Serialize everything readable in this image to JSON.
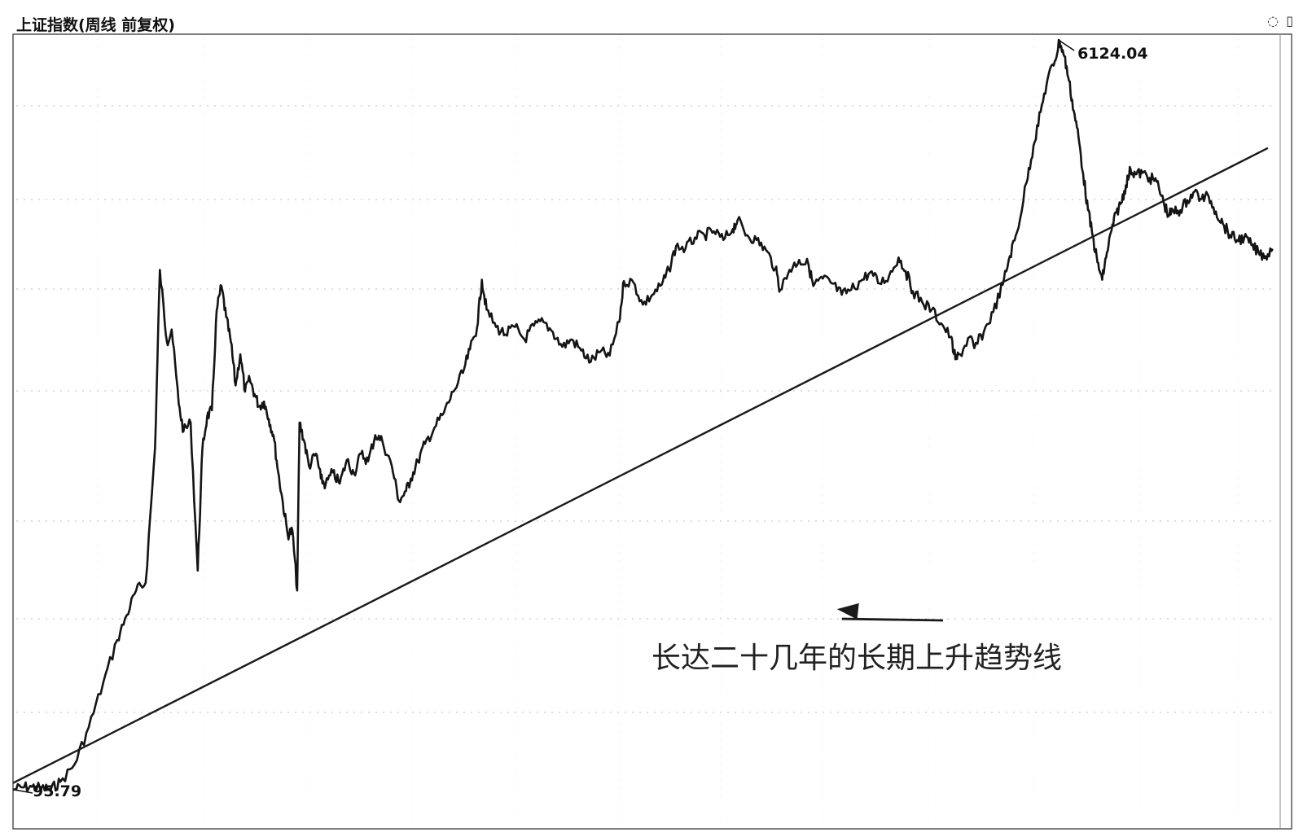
{
  "window": {
    "title": "上证指数(周线 前复权)",
    "controls": {
      "restore_icon": "◌",
      "maximize_icon": "▯",
      "close_icon": "×"
    }
  },
  "colors": {
    "price_line": "#141414",
    "trend_line": "#1a1a1a",
    "grid": "#bdbdbd",
    "border": "#555555"
  },
  "chart_data": {
    "type": "line",
    "title": "上证指数(周线 前复权)",
    "xlabel": "",
    "ylabel": "",
    "grid": true,
    "ylim": [
      95.79,
      6124.04
    ],
    "series": [
      {
        "values": [
          [
            0,
            96
          ],
          [
            4,
            115
          ],
          [
            8,
            120
          ],
          [
            12,
            110
          ],
          [
            16,
            100
          ],
          [
            20,
            160
          ],
          [
            26,
            300
          ],
          [
            32,
            600
          ],
          [
            38,
            950
          ],
          [
            44,
            1300
          ],
          [
            48,
            1500
          ],
          [
            52,
            1700
          ],
          [
            56,
            1760
          ],
          [
            60,
            2850
          ],
          [
            62,
            4280
          ],
          [
            65,
            3700
          ],
          [
            67,
            3800
          ],
          [
            70,
            3200
          ],
          [
            72,
            2980
          ],
          [
            75,
            3050
          ],
          [
            78,
            1860
          ],
          [
            80,
            2850
          ],
          [
            82,
            3100
          ],
          [
            84,
            3150
          ],
          [
            86,
            3950
          ],
          [
            88,
            4150
          ],
          [
            90,
            3900
          ],
          [
            92,
            3700
          ],
          [
            94,
            3350
          ],
          [
            96,
            3600
          ],
          [
            98,
            3300
          ],
          [
            100,
            3400
          ],
          [
            102,
            3280
          ],
          [
            104,
            3180
          ],
          [
            106,
            3220
          ],
          [
            108,
            3080
          ],
          [
            110,
            2950
          ],
          [
            112,
            2650
          ],
          [
            114,
            2400
          ],
          [
            116,
            2150
          ],
          [
            118,
            2180
          ],
          [
            120,
            1700
          ],
          [
            121,
            3050
          ],
          [
            123,
            2900
          ],
          [
            125,
            2700
          ],
          [
            128,
            2800
          ],
          [
            130,
            2600
          ],
          [
            132,
            2550
          ],
          [
            135,
            2650
          ],
          [
            138,
            2560
          ],
          [
            141,
            2750
          ],
          [
            144,
            2640
          ],
          [
            147,
            2800
          ],
          [
            150,
            2740
          ],
          [
            153,
            2950
          ],
          [
            156,
            2900
          ],
          [
            160,
            2700
          ],
          [
            163,
            2420
          ],
          [
            166,
            2500
          ],
          [
            168,
            2600
          ],
          [
            171,
            2740
          ],
          [
            174,
            2880
          ],
          [
            178,
            3010
          ],
          [
            182,
            3130
          ],
          [
            186,
            3300
          ],
          [
            190,
            3450
          ],
          [
            193,
            3640
          ],
          [
            196,
            3820
          ],
          [
            198,
            4200
          ],
          [
            200,
            3960
          ],
          [
            204,
            3820
          ],
          [
            208,
            3760
          ],
          [
            212,
            3820
          ],
          [
            216,
            3720
          ],
          [
            220,
            3830
          ],
          [
            224,
            3860
          ],
          [
            228,
            3780
          ],
          [
            232,
            3660
          ],
          [
            236,
            3720
          ],
          [
            240,
            3630
          ],
          [
            244,
            3540
          ],
          [
            248,
            3620
          ],
          [
            252,
            3590
          ],
          [
            256,
            3860
          ],
          [
            258,
            4190
          ],
          [
            262,
            4180
          ],
          [
            266,
            4000
          ],
          [
            270,
            4080
          ],
          [
            274,
            4160
          ],
          [
            277,
            4280
          ],
          [
            280,
            4470
          ],
          [
            284,
            4450
          ],
          [
            288,
            4540
          ],
          [
            292,
            4560
          ],
          [
            296,
            4590
          ],
          [
            300,
            4520
          ],
          [
            304,
            4610
          ],
          [
            306,
            4680
          ],
          [
            310,
            4560
          ],
          [
            314,
            4520
          ],
          [
            318,
            4440
          ],
          [
            322,
            4290
          ],
          [
            324,
            4120
          ],
          [
            328,
            4280
          ],
          [
            332,
            4360
          ],
          [
            336,
            4320
          ],
          [
            338,
            4150
          ],
          [
            342,
            4210
          ],
          [
            346,
            4170
          ],
          [
            350,
            4080
          ],
          [
            354,
            4120
          ],
          [
            358,
            4190
          ],
          [
            362,
            4260
          ],
          [
            366,
            4170
          ],
          [
            370,
            4230
          ],
          [
            374,
            4380
          ],
          [
            377,
            4270
          ],
          [
            380,
            4110
          ],
          [
            384,
            4020
          ],
          [
            388,
            3960
          ],
          [
            392,
            3850
          ],
          [
            396,
            3740
          ],
          [
            398,
            3560
          ],
          [
            400,
            3600
          ],
          [
            404,
            3740
          ],
          [
            406,
            3650
          ],
          [
            410,
            3780
          ],
          [
            414,
            3940
          ],
          [
            418,
            4160
          ],
          [
            421,
            4390
          ],
          [
            424,
            4580
          ],
          [
            428,
            4980
          ],
          [
            431,
            5280
          ],
          [
            434,
            5550
          ],
          [
            437,
            5820
          ],
          [
            440,
            5960
          ],
          [
            442,
            6124
          ],
          [
            444,
            6000
          ],
          [
            446,
            5800
          ],
          [
            448,
            5560
          ],
          [
            450,
            5350
          ],
          [
            452,
            5050
          ],
          [
            454,
            4760
          ],
          [
            456,
            4550
          ],
          [
            458,
            4340
          ],
          [
            460,
            4200
          ],
          [
            462,
            4420
          ],
          [
            464,
            4600
          ],
          [
            466,
            4740
          ],
          [
            468,
            4820
          ],
          [
            470,
            4960
          ],
          [
            472,
            5090
          ],
          [
            474,
            5050
          ],
          [
            477,
            5060
          ],
          [
            480,
            5020
          ],
          [
            483,
            4990
          ],
          [
            486,
            4820
          ],
          [
            488,
            4720
          ],
          [
            490,
            4750
          ],
          [
            493,
            4760
          ],
          [
            496,
            4840
          ],
          [
            499,
            4910
          ],
          [
            502,
            4850
          ],
          [
            505,
            4870
          ],
          [
            508,
            4750
          ],
          [
            511,
            4650
          ],
          [
            514,
            4560
          ],
          [
            517,
            4520
          ],
          [
            520,
            4540
          ],
          [
            523,
            4480
          ],
          [
            526,
            4420
          ],
          [
            529,
            4390
          ],
          [
            532,
            4450
          ]
        ]
      }
    ],
    "markers": {
      "high": {
        "label": "6124.04",
        "value": 6124.04,
        "x": 442
      },
      "low": {
        "label": "95.79",
        "value": 95.79,
        "x": 0
      }
    },
    "trendline": {
      "from": [
        0,
        150
      ],
      "to": [
        530,
        5260
      ]
    },
    "annotations": [
      {
        "text": "长达二十几年的长期上升趋势线",
        "x": 348,
        "value": 1550
      }
    ]
  }
}
